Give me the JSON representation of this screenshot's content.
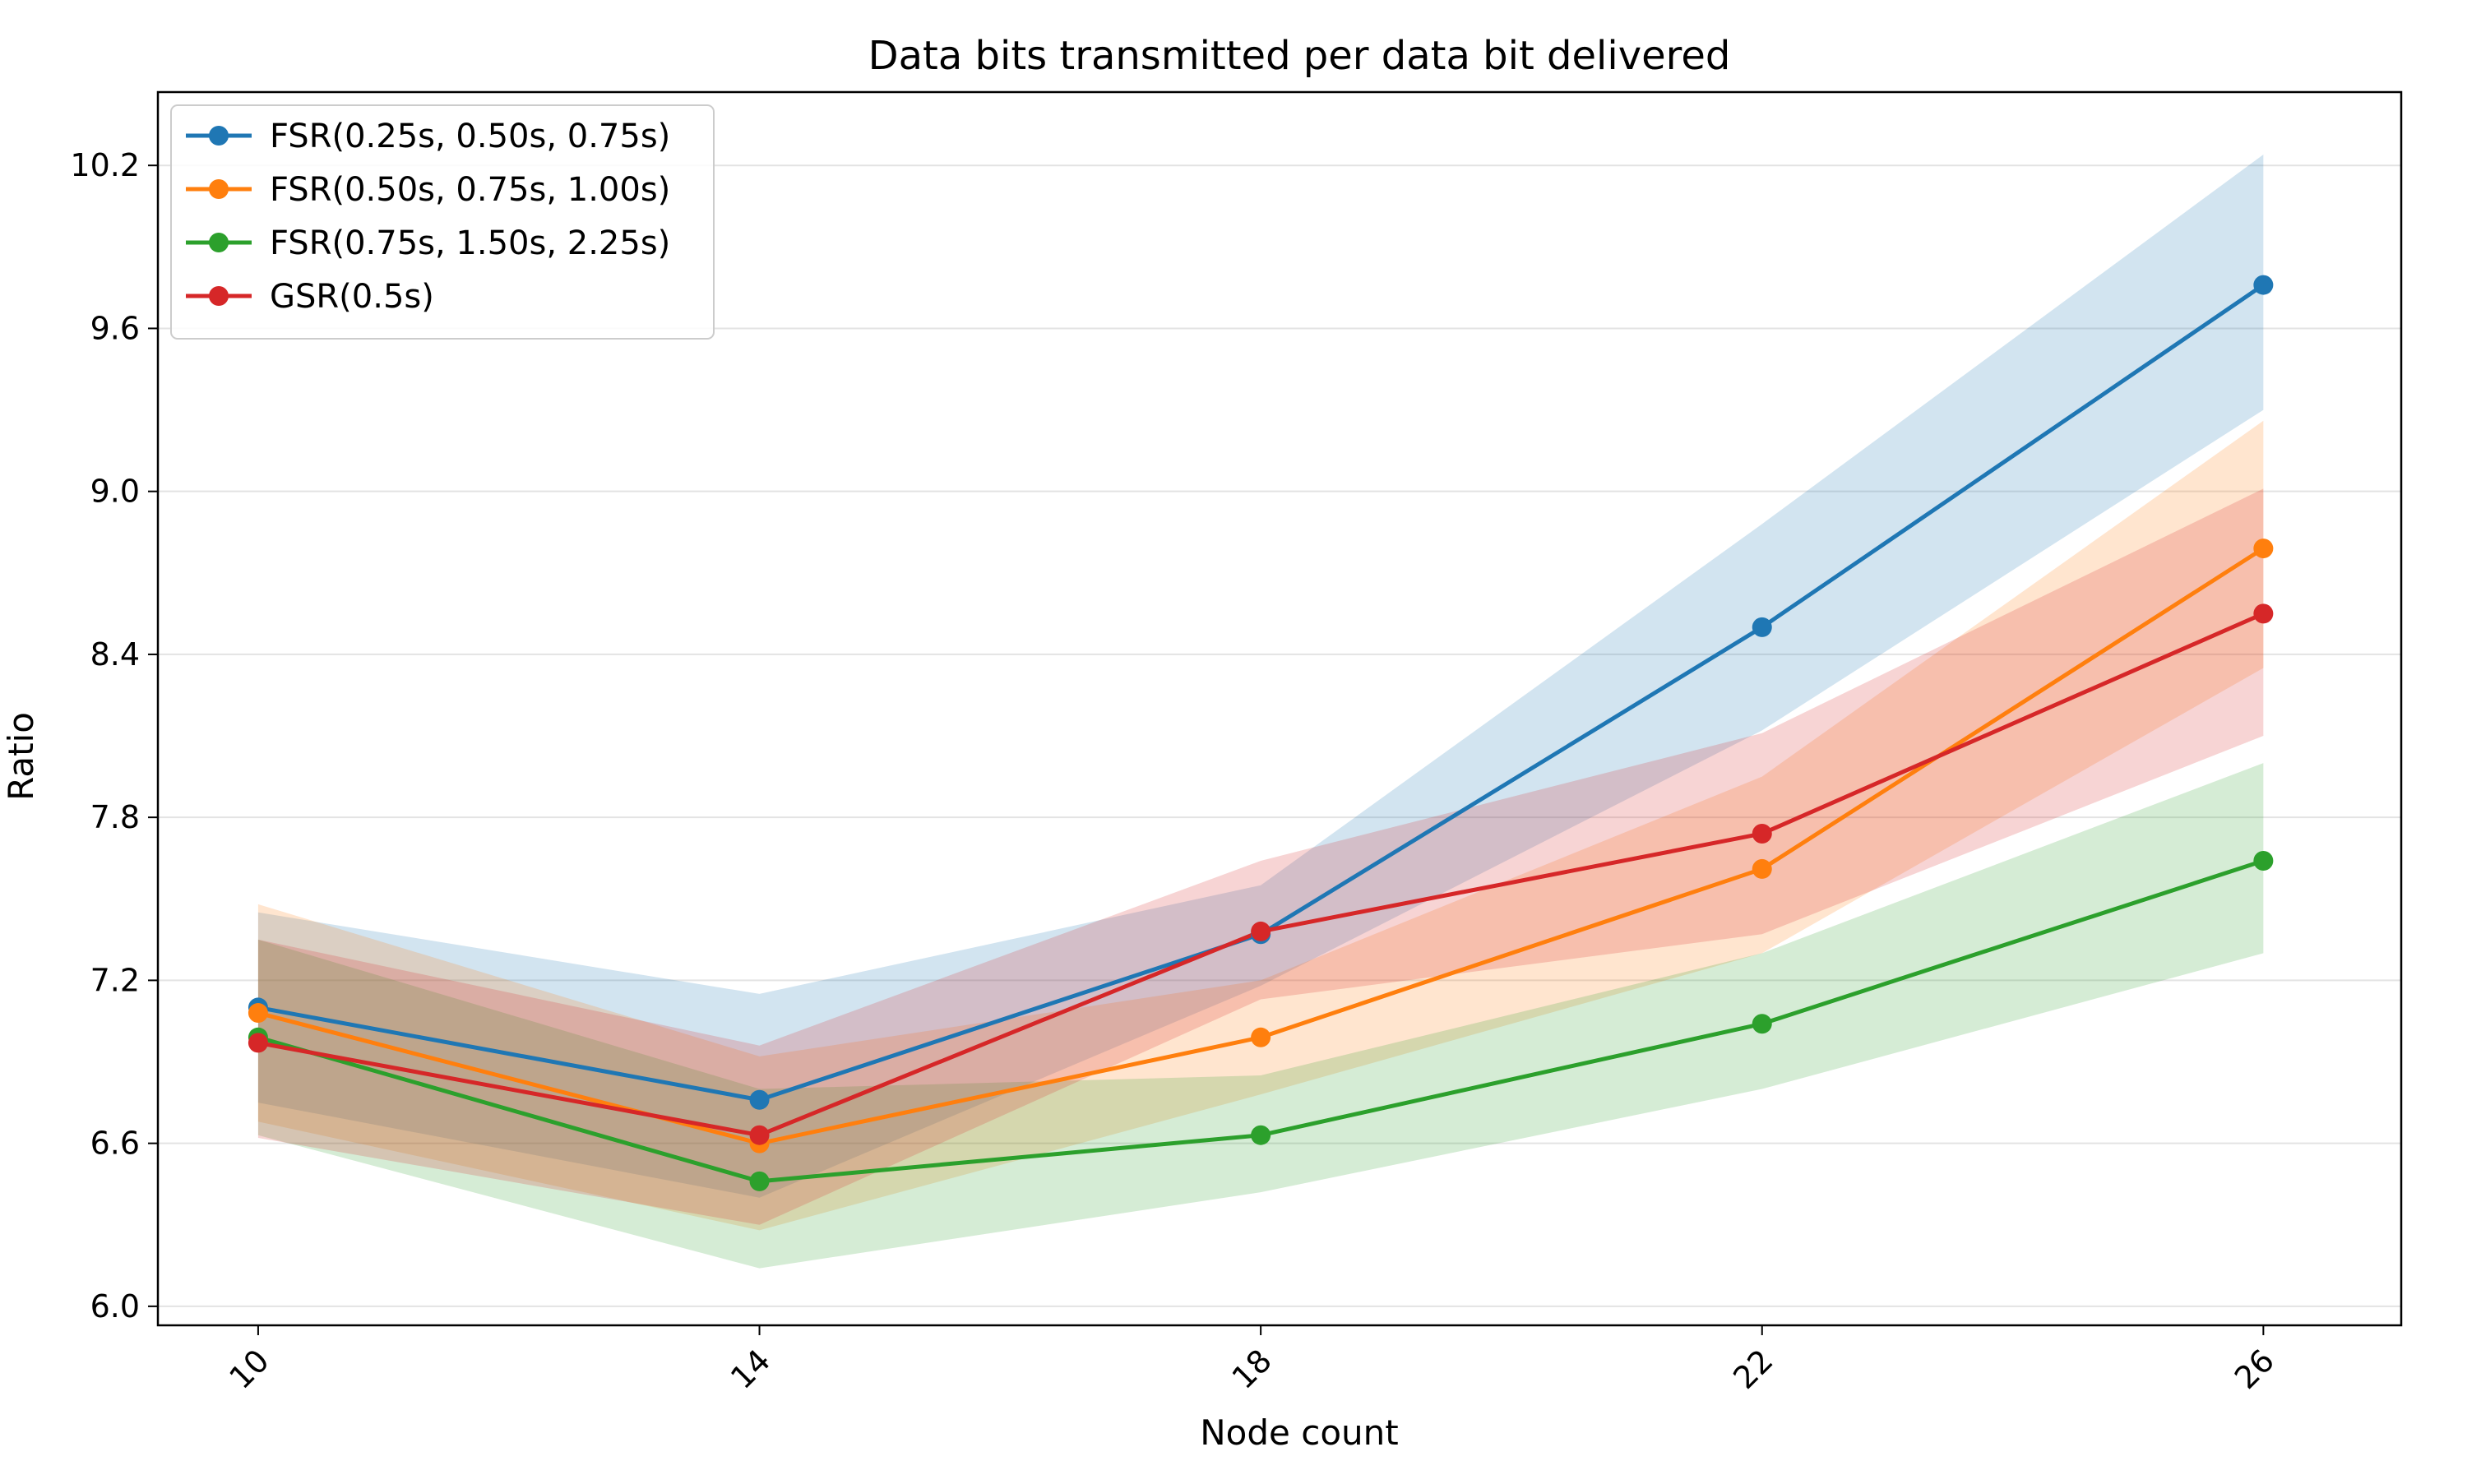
{
  "chart_data": {
    "type": "line",
    "title": "Data bits transmitted per data bit delivered",
    "xlabel": "Node count",
    "ylabel": "Ratio",
    "x": [
      10,
      14,
      18,
      22,
      26
    ],
    "x_tick_labels": [
      "10",
      "14",
      "18",
      "22",
      "26"
    ],
    "xlim": [
      9.2,
      27.1
    ],
    "y_ticks": [
      6.0,
      6.6,
      7.2,
      7.8,
      8.4,
      9.0,
      9.6,
      10.2
    ],
    "y_tick_labels": [
      "6.0",
      "6.6",
      "7.2",
      "7.8",
      "8.4",
      "9.0",
      "9.6",
      "10.2"
    ],
    "ylim": [
      5.93,
      10.47
    ],
    "grid": "horizontal",
    "legend_position": "top-left",
    "series": [
      {
        "name": "FSR(0.25s, 0.50s, 0.75s)",
        "color": "#1f77b4",
        "values": [
          7.1,
          6.76,
          7.37,
          8.5,
          9.76
        ],
        "band_low": [
          6.75,
          6.4,
          7.18,
          8.12,
          9.3
        ],
        "band_high": [
          7.45,
          7.15,
          7.55,
          8.88,
          10.24
        ]
      },
      {
        "name": "FSR(0.50s, 0.75s, 1.00s)",
        "color": "#ff7f0e",
        "values": [
          7.08,
          6.6,
          6.99,
          7.61,
          8.79
        ],
        "band_low": [
          6.68,
          6.28,
          6.78,
          7.3,
          8.35
        ],
        "band_high": [
          7.48,
          6.92,
          7.2,
          7.95,
          9.26
        ]
      },
      {
        "name": "FSR(0.75s, 1.50s, 2.25s)",
        "color": "#2ca02c",
        "values": [
          6.99,
          6.46,
          6.63,
          7.04,
          7.64
        ],
        "band_low": [
          6.63,
          6.14,
          6.42,
          6.8,
          7.3
        ],
        "band_high": [
          7.35,
          6.8,
          6.85,
          7.3,
          8.0
        ]
      },
      {
        "name": "GSR(0.5s)",
        "color": "#d62728",
        "values": [
          6.97,
          6.63,
          7.38,
          7.74,
          8.55
        ],
        "band_low": [
          6.62,
          6.3,
          7.13,
          7.37,
          8.1
        ],
        "band_high": [
          7.35,
          6.96,
          7.64,
          8.11,
          9.01
        ]
      }
    ]
  }
}
